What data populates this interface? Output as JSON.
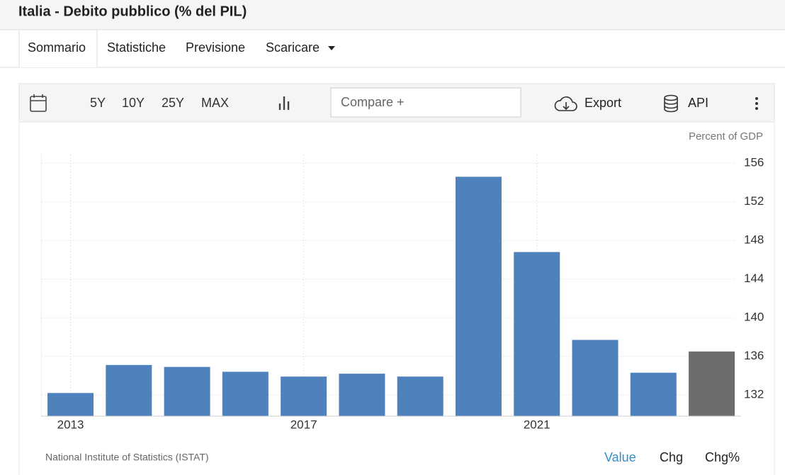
{
  "header": {
    "title": "Italia - Debito pubblico (% del PIL)"
  },
  "tabs": [
    "Sommario",
    "Statistiche",
    "Previsione",
    "Scaricare"
  ],
  "toolbar": {
    "ranges": [
      "5Y",
      "10Y",
      "25Y",
      "MAX"
    ],
    "compare": "Compare +",
    "export": "Export",
    "api": "API"
  },
  "chart_data": {
    "type": "bar",
    "unit_label": "Percent of GDP",
    "categories": [
      "2013",
      null,
      null,
      null,
      "2017",
      null,
      null,
      null,
      "2021",
      null,
      null,
      null
    ],
    "values": [
      132.2,
      135.1,
      134.9,
      134.4,
      133.9,
      134.2,
      133.9,
      154.6,
      146.8,
      137.7,
      134.3,
      136.5
    ],
    "colors": [
      "#4f81bd",
      "#4f81bd",
      "#4f81bd",
      "#4f81bd",
      "#4f81bd",
      "#4f81bd",
      "#4f81bd",
      "#4f81bd",
      "#4f81bd",
      "#4f81bd",
      "#4f81bd",
      "#6d6d6d"
    ],
    "ylim": [
      129.8,
      156.9
    ],
    "yticks": [
      132,
      136,
      140,
      144,
      148,
      152,
      156
    ],
    "grid": true
  },
  "footer": {
    "source": "National Institute of Statistics (ISTAT)",
    "views": [
      "Value",
      "Chg",
      "Chg%"
    ]
  }
}
